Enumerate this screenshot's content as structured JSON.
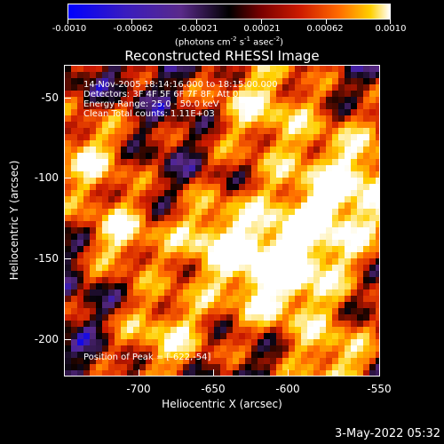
{
  "colorbar": {
    "ticks": [
      "-0.0010",
      "-0.00062",
      "-0.00021",
      "0.00021",
      "0.00062",
      "0.0010"
    ],
    "units_prefix": "(photons cm",
    "units_sup1": "-2",
    "units_mid1": " s",
    "units_sup2": "-1",
    "units_mid2": " asec",
    "units_sup3": "-2",
    "units_suffix": ")"
  },
  "title": "Reconstructed RHESSI Image",
  "info": {
    "time": "14-Nov-2005 18:14:16.000 to 18:15:00.000",
    "detectors": "Detectors: 3F 4F 5F 6F 7F 8F, Att 0",
    "energy": "Energy Range: 25.0 - 50.0 keV",
    "clean": "Clean     Total counts: 1.11E+03",
    "peak": "Position of Peak = [-622,-54]"
  },
  "axes": {
    "xlabel": "Heliocentric X (arcsec)",
    "ylabel": "Heliocentric Y (arcsec)",
    "xticks": [
      "-700",
      "-650",
      "-600",
      "-550"
    ],
    "yticks": [
      "-50",
      "-100",
      "-150",
      "-200"
    ]
  },
  "footer": {
    "date": "3-May-2022 05:32"
  },
  "chart_data": {
    "type": "heatmap",
    "title": "Reconstructed RHESSI Image",
    "xlabel": "Heliocentric X (arcsec)",
    "ylabel": "Heliocentric Y (arcsec)",
    "xlim": [
      -735,
      -550
    ],
    "ylim": [
      -222,
      -34
    ],
    "zlim": [
      -0.001,
      0.001
    ],
    "colorscale": [
      "#0000ff",
      "#5a2a8a",
      "#000000",
      "#cc1a00",
      "#ff6a00",
      "#ffd000",
      "#ffffff"
    ],
    "peak": [
      -622,
      -54
    ]
  }
}
